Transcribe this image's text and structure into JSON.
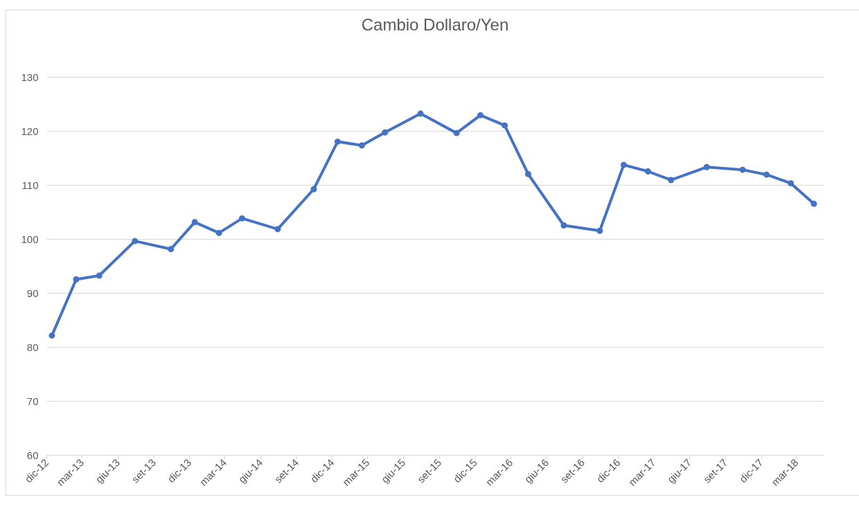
{
  "chart_data": {
    "type": "line",
    "title": "Cambio Dollaro/Yen",
    "x": [
      "2012-12-15",
      "2013-02-15",
      "2013-04-15",
      "2013-07-15",
      "2013-10-15",
      "2013-12-15",
      "2014-02-15",
      "2014-04-15",
      "2014-07-15",
      "2014-10-15",
      "2014-12-15",
      "2015-02-15",
      "2015-04-15",
      "2015-07-15",
      "2015-10-15",
      "2015-12-15",
      "2016-02-15",
      "2016-04-15",
      "2016-07-15",
      "2016-10-15",
      "2016-12-15",
      "2017-02-15",
      "2017-04-15",
      "2017-07-15",
      "2017-10-15",
      "2017-12-15",
      "2018-02-15",
      "2018-04-15"
    ],
    "series": [
      {
        "color": "#4472c4",
        "values": [
          82.1,
          92.5,
          93.2,
          99.6,
          98.1,
          103.1,
          101.1,
          103.8,
          101.8,
          109.2,
          118.0,
          117.3,
          119.7,
          123.2,
          119.6,
          122.9,
          121.0,
          112.0,
          102.5,
          101.5,
          113.7,
          112.5,
          110.9,
          113.3,
          112.8,
          111.9,
          110.3,
          106.5
        ]
      }
    ],
    "xlim": [
      "2012-12-01",
      "2018-05-10"
    ],
    "xticks": [
      {
        "value": "2012-12-01",
        "label": "dic-12"
      },
      {
        "value": "2013-03-01",
        "label": "mar-13"
      },
      {
        "value": "2013-06-01",
        "label": "giu-13"
      },
      {
        "value": "2013-09-01",
        "label": "set-13"
      },
      {
        "value": "2013-12-01",
        "label": "dic-13"
      },
      {
        "value": "2014-03-01",
        "label": "mar-14"
      },
      {
        "value": "2014-06-01",
        "label": "giu-14"
      },
      {
        "value": "2014-09-01",
        "label": "set-14"
      },
      {
        "value": "2014-12-01",
        "label": "dic-14"
      },
      {
        "value": "2015-03-01",
        "label": "mar-15"
      },
      {
        "value": "2015-06-01",
        "label": "giu-15"
      },
      {
        "value": "2015-09-01",
        "label": "set-15"
      },
      {
        "value": "2015-12-01",
        "label": "dic-15"
      },
      {
        "value": "2016-03-01",
        "label": "mar-16"
      },
      {
        "value": "2016-06-01",
        "label": "giu-16"
      },
      {
        "value": "2016-09-01",
        "label": "set-16"
      },
      {
        "value": "2016-12-01",
        "label": "dic-16"
      },
      {
        "value": "2017-03-01",
        "label": "mar-17"
      },
      {
        "value": "2017-06-01",
        "label": "giu-17"
      },
      {
        "value": "2017-09-01",
        "label": "set-17"
      },
      {
        "value": "2017-12-01",
        "label": "dic-17"
      },
      {
        "value": "2018-03-01",
        "label": "mar-18"
      }
    ],
    "ylim": [
      60,
      130
    ],
    "yticks": [
      60,
      70,
      80,
      90,
      100,
      110,
      120,
      130
    ],
    "grid": "y",
    "legend": false,
    "marker": "circle",
    "line_style": "solid"
  }
}
